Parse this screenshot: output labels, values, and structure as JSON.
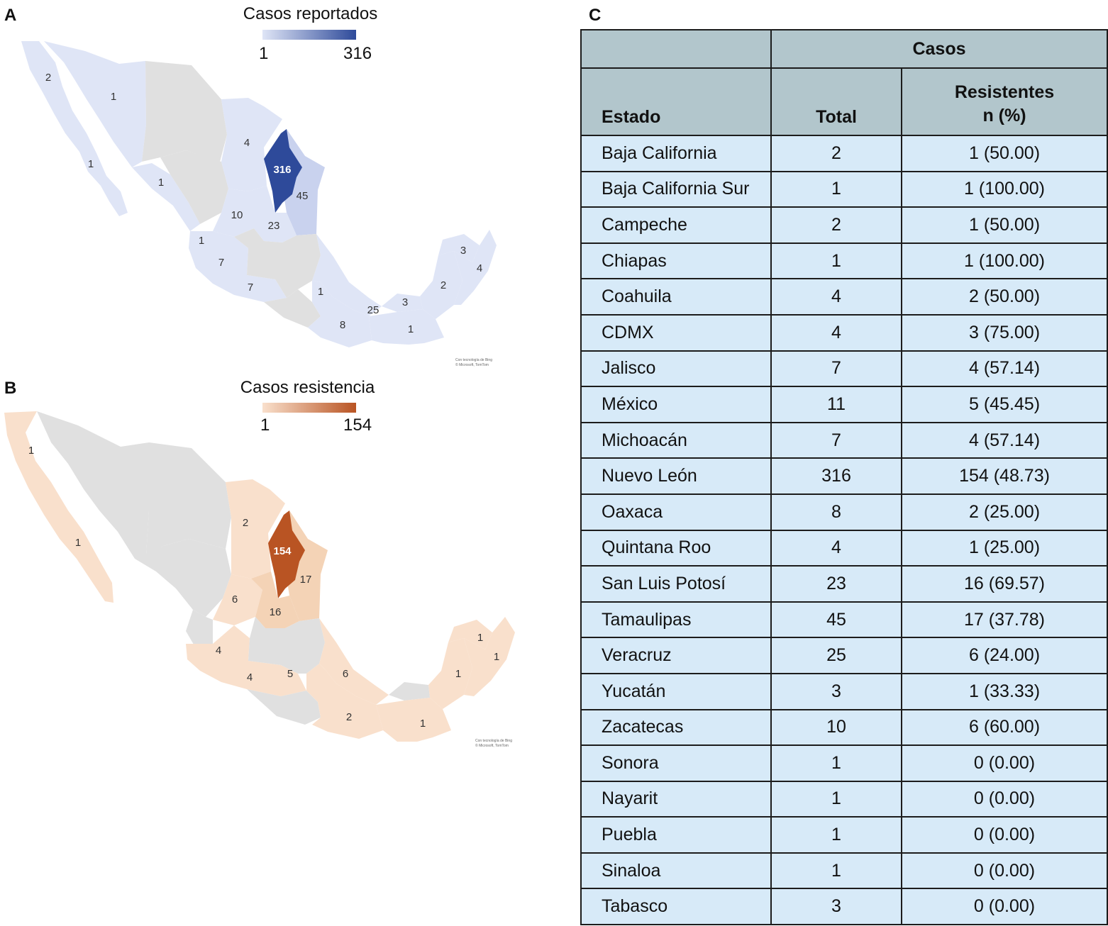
{
  "panels": {
    "a": {
      "letter": "A",
      "legend": {
        "title": "Casos reportados",
        "min": "1",
        "max": "316",
        "color_low": "#dfe5f6",
        "color_high": "#2e4a9a"
      },
      "labels": [
        "2",
        "1",
        "1",
        "1",
        "4",
        "316",
        "45",
        "10",
        "23",
        "1",
        "7",
        "7",
        "1",
        "8",
        "25",
        "3",
        "1",
        "3",
        "4",
        "2"
      ],
      "credit": [
        "Con tecnología de Bing",
        "© Microsoft, TomTom"
      ]
    },
    "b": {
      "letter": "B",
      "legend": {
        "title": "Casos resistencia",
        "min": "1",
        "max": "154",
        "color_low": "#f9e0cc",
        "color_high": "#b95423"
      },
      "labels": [
        "1",
        "1",
        "2",
        "154",
        "17",
        "6",
        "16",
        "4",
        "4",
        "5",
        "6",
        "2",
        "1",
        "1",
        "1",
        "1"
      ],
      "credit": [
        "Con tecnología de Bing",
        "© Microsoft, TomTom"
      ]
    },
    "c": {
      "letter": "C"
    }
  },
  "table": {
    "header_group": "Casos",
    "col_estado": "Estado",
    "col_total": "Total",
    "col_res_line1": "Resistentes",
    "col_res_line2": "n (%)",
    "rows": [
      {
        "estado": "Baja California",
        "total": "2",
        "resistentes": "1 (50.00)"
      },
      {
        "estado": "Baja California Sur",
        "total": "1",
        "resistentes": "1 (100.00)"
      },
      {
        "estado": "Campeche",
        "total": "2",
        "resistentes": "1 (50.00)"
      },
      {
        "estado": "Chiapas",
        "total": "1",
        "resistentes": "1 (100.00)"
      },
      {
        "estado": "Coahuila",
        "total": "4",
        "resistentes": "2 (50.00)"
      },
      {
        "estado": "CDMX",
        "total": "4",
        "resistentes": "3 (75.00)"
      },
      {
        "estado": "Jalisco",
        "total": "7",
        "resistentes": "4 (57.14)"
      },
      {
        "estado": "México",
        "total": "11",
        "resistentes": "5 (45.45)"
      },
      {
        "estado": "Michoacán",
        "total": "7",
        "resistentes": "4 (57.14)"
      },
      {
        "estado": "Nuevo León",
        "total": "316",
        "resistentes": "154 (48.73)"
      },
      {
        "estado": "Oaxaca",
        "total": "8",
        "resistentes": "2 (25.00)"
      },
      {
        "estado": "Quintana Roo",
        "total": "4",
        "resistentes": "1 (25.00)"
      },
      {
        "estado": "San Luis Potosí",
        "total": "23",
        "resistentes": "16 (69.57)"
      },
      {
        "estado": "Tamaulipas",
        "total": "45",
        "resistentes": "17 (37.78)"
      },
      {
        "estado": "Veracruz",
        "total": "25",
        "resistentes": "6 (24.00)"
      },
      {
        "estado": "Yucatán",
        "total": "3",
        "resistentes": "1 (33.33)"
      },
      {
        "estado": "Zacatecas",
        "total": "10",
        "resistentes": "6 (60.00)"
      },
      {
        "estado": "Sonora",
        "total": "1",
        "resistentes": "0 (0.00)"
      },
      {
        "estado": "Nayarit",
        "total": "1",
        "resistentes": "0 (0.00)"
      },
      {
        "estado": "Puebla",
        "total": "1",
        "resistentes": "0 (0.00)"
      },
      {
        "estado": "Sinaloa",
        "total": "1",
        "resistentes": "0 (0.00)"
      },
      {
        "estado": "Tabasco",
        "total": "3",
        "resistentes": "0 (0.00)"
      }
    ]
  }
}
